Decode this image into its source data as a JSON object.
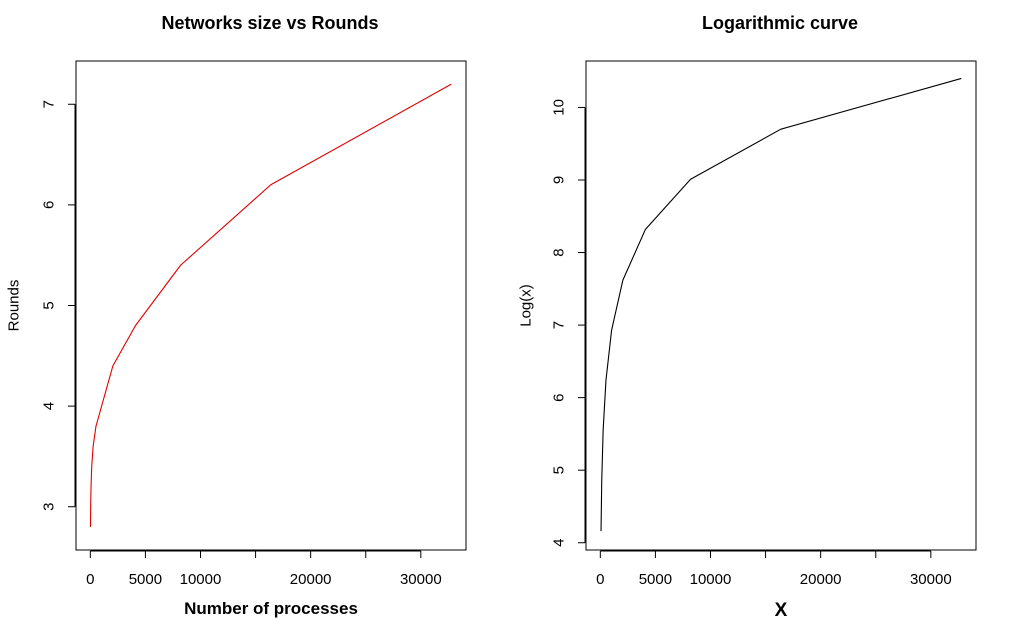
{
  "chart_data": [
    {
      "type": "line",
      "title": "Networks size vs Rounds",
      "xlabel": "Number of processes",
      "ylabel": "Rounds",
      "xlim": [
        -1300,
        34100
      ],
      "ylim": [
        2.57,
        7.43
      ],
      "x_ticks": [
        0,
        5000,
        10000,
        15000,
        20000,
        25000,
        30000
      ],
      "x_tick_labels": [
        "0",
        "5000",
        "10000",
        "",
        "20000",
        "",
        "30000"
      ],
      "y_ticks": [
        3,
        4,
        5,
        6,
        7
      ],
      "y_tick_labels": [
        "3",
        "4",
        "5",
        "6",
        "7"
      ],
      "series": [
        {
          "color": "#e00000",
          "x": [
            16,
            32,
            64,
            128,
            256,
            512,
            1024,
            2048,
            4096,
            8192,
            16384,
            32768
          ],
          "y": [
            2.8,
            3.0,
            3.2,
            3.4,
            3.6,
            3.8,
            4.0,
            4.4,
            4.8,
            5.4,
            6.2,
            7.2
          ]
        }
      ],
      "grid": false,
      "legend": "none"
    },
    {
      "type": "line",
      "title": "Logarithmic curve",
      "xlabel": "X",
      "ylabel": "Log(x)",
      "xlim": [
        -1300,
        34100
      ],
      "ylim": [
        3.9,
        10.64
      ],
      "x_ticks": [
        0,
        5000,
        10000,
        15000,
        20000,
        25000,
        30000
      ],
      "x_tick_labels": [
        "0",
        "5000",
        "10000",
        "",
        "20000",
        "",
        "30000"
      ],
      "y_ticks": [
        4,
        5,
        6,
        7,
        8,
        9,
        10
      ],
      "y_tick_labels": [
        "4",
        "5",
        "6",
        "7",
        "8",
        "9",
        "10"
      ],
      "series": [
        {
          "color": "#000000",
          "x": [
            64,
            128,
            256,
            512,
            1024,
            2048,
            4096,
            8192,
            16384,
            32768
          ],
          "y": [
            4.16,
            4.85,
            5.55,
            6.24,
            6.93,
            7.62,
            8.32,
            9.01,
            9.7,
            10.4
          ]
        }
      ],
      "grid": false,
      "legend": "none"
    }
  ]
}
